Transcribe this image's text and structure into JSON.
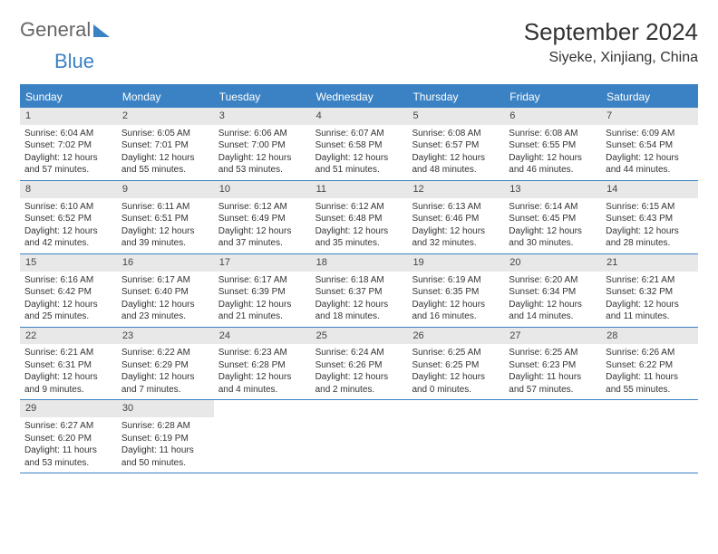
{
  "logo": {
    "part1": "General",
    "part2": "Blue"
  },
  "title": "September 2024",
  "location": "Siyeke, Xinjiang, China",
  "colors": {
    "accent": "#3b82c4",
    "header_bg": "#3b82c4",
    "daynum_bg": "#e8e8e8",
    "text": "#333333",
    "background": "#ffffff"
  },
  "day_names": [
    "Sunday",
    "Monday",
    "Tuesday",
    "Wednesday",
    "Thursday",
    "Friday",
    "Saturday"
  ],
  "weeks": [
    [
      {
        "n": "1",
        "sr": "6:04 AM",
        "ss": "7:02 PM",
        "dl": "12 hours and 57 minutes."
      },
      {
        "n": "2",
        "sr": "6:05 AM",
        "ss": "7:01 PM",
        "dl": "12 hours and 55 minutes."
      },
      {
        "n": "3",
        "sr": "6:06 AM",
        "ss": "7:00 PM",
        "dl": "12 hours and 53 minutes."
      },
      {
        "n": "4",
        "sr": "6:07 AM",
        "ss": "6:58 PM",
        "dl": "12 hours and 51 minutes."
      },
      {
        "n": "5",
        "sr": "6:08 AM",
        "ss": "6:57 PM",
        "dl": "12 hours and 48 minutes."
      },
      {
        "n": "6",
        "sr": "6:08 AM",
        "ss": "6:55 PM",
        "dl": "12 hours and 46 minutes."
      },
      {
        "n": "7",
        "sr": "6:09 AM",
        "ss": "6:54 PM",
        "dl": "12 hours and 44 minutes."
      }
    ],
    [
      {
        "n": "8",
        "sr": "6:10 AM",
        "ss": "6:52 PM",
        "dl": "12 hours and 42 minutes."
      },
      {
        "n": "9",
        "sr": "6:11 AM",
        "ss": "6:51 PM",
        "dl": "12 hours and 39 minutes."
      },
      {
        "n": "10",
        "sr": "6:12 AM",
        "ss": "6:49 PM",
        "dl": "12 hours and 37 minutes."
      },
      {
        "n": "11",
        "sr": "6:12 AM",
        "ss": "6:48 PM",
        "dl": "12 hours and 35 minutes."
      },
      {
        "n": "12",
        "sr": "6:13 AM",
        "ss": "6:46 PM",
        "dl": "12 hours and 32 minutes."
      },
      {
        "n": "13",
        "sr": "6:14 AM",
        "ss": "6:45 PM",
        "dl": "12 hours and 30 minutes."
      },
      {
        "n": "14",
        "sr": "6:15 AM",
        "ss": "6:43 PM",
        "dl": "12 hours and 28 minutes."
      }
    ],
    [
      {
        "n": "15",
        "sr": "6:16 AM",
        "ss": "6:42 PM",
        "dl": "12 hours and 25 minutes."
      },
      {
        "n": "16",
        "sr": "6:17 AM",
        "ss": "6:40 PM",
        "dl": "12 hours and 23 minutes."
      },
      {
        "n": "17",
        "sr": "6:17 AM",
        "ss": "6:39 PM",
        "dl": "12 hours and 21 minutes."
      },
      {
        "n": "18",
        "sr": "6:18 AM",
        "ss": "6:37 PM",
        "dl": "12 hours and 18 minutes."
      },
      {
        "n": "19",
        "sr": "6:19 AM",
        "ss": "6:35 PM",
        "dl": "12 hours and 16 minutes."
      },
      {
        "n": "20",
        "sr": "6:20 AM",
        "ss": "6:34 PM",
        "dl": "12 hours and 14 minutes."
      },
      {
        "n": "21",
        "sr": "6:21 AM",
        "ss": "6:32 PM",
        "dl": "12 hours and 11 minutes."
      }
    ],
    [
      {
        "n": "22",
        "sr": "6:21 AM",
        "ss": "6:31 PM",
        "dl": "12 hours and 9 minutes."
      },
      {
        "n": "23",
        "sr": "6:22 AM",
        "ss": "6:29 PM",
        "dl": "12 hours and 7 minutes."
      },
      {
        "n": "24",
        "sr": "6:23 AM",
        "ss": "6:28 PM",
        "dl": "12 hours and 4 minutes."
      },
      {
        "n": "25",
        "sr": "6:24 AM",
        "ss": "6:26 PM",
        "dl": "12 hours and 2 minutes."
      },
      {
        "n": "26",
        "sr": "6:25 AM",
        "ss": "6:25 PM",
        "dl": "12 hours and 0 minutes."
      },
      {
        "n": "27",
        "sr": "6:25 AM",
        "ss": "6:23 PM",
        "dl": "11 hours and 57 minutes."
      },
      {
        "n": "28",
        "sr": "6:26 AM",
        "ss": "6:22 PM",
        "dl": "11 hours and 55 minutes."
      }
    ],
    [
      {
        "n": "29",
        "sr": "6:27 AM",
        "ss": "6:20 PM",
        "dl": "11 hours and 53 minutes."
      },
      {
        "n": "30",
        "sr": "6:28 AM",
        "ss": "6:19 PM",
        "dl": "11 hours and 50 minutes."
      },
      null,
      null,
      null,
      null,
      null
    ]
  ],
  "labels": {
    "sunrise": "Sunrise:",
    "sunset": "Sunset:",
    "daylight": "Daylight:"
  }
}
